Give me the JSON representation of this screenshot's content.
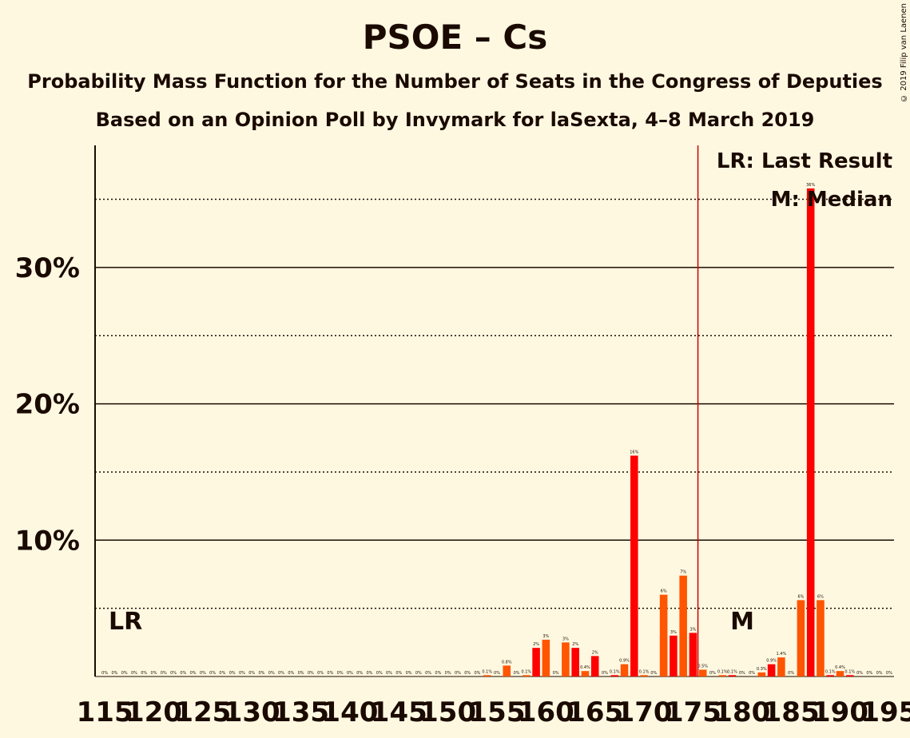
{
  "title": "PSOE – Cs",
  "subtitle": "Probability Mass Function for the Number of Seats in the Congress of Deputies",
  "subtitle2": "Based on an Opinion Poll by Invymark for laSexta, 4–8 March 2019",
  "copyright": "© 2019 Filip van Laenen",
  "legend": {
    "lr": "LR: Last Result",
    "m": "M: Median"
  },
  "markers": {
    "lr_label": "LR",
    "lr_seat": 115,
    "median_label": "M",
    "median_seat": 181,
    "majority_seat": 176
  },
  "colors": {
    "background": "#FFF8E1",
    "bar_primary": "#FF0000",
    "bar_secondary": "#FF5500",
    "majority_line": "#CC0000",
    "text": "#1a0a00"
  },
  "chart_data": {
    "type": "bar",
    "title": "PSOE – Cs",
    "xlabel": "",
    "ylabel": "",
    "x_ticks": [
      "115",
      "120",
      "125",
      "130",
      "135",
      "140",
      "145",
      "150",
      "155",
      "160",
      "165",
      "170",
      "175",
      "180",
      "185",
      "190",
      "195"
    ],
    "y_ticks": [
      "10%",
      "20%",
      "30%"
    ],
    "ylim": [
      0,
      39
    ],
    "grid": "solid lines at 10%, 20%, 30%; dotted lines at 5%, 15%, 25%, 35%",
    "seats": [
      115,
      116,
      117,
      118,
      119,
      120,
      121,
      122,
      123,
      124,
      125,
      126,
      127,
      128,
      129,
      130,
      131,
      132,
      133,
      134,
      135,
      136,
      137,
      138,
      139,
      140,
      141,
      142,
      143,
      144,
      145,
      146,
      147,
      148,
      149,
      150,
      151,
      152,
      153,
      154,
      155,
      156,
      157,
      158,
      159,
      160,
      161,
      162,
      163,
      164,
      165,
      166,
      167,
      168,
      169,
      170,
      171,
      172,
      173,
      174,
      175,
      176,
      177,
      178,
      179,
      180,
      181,
      182,
      183,
      184,
      185,
      186,
      187,
      188,
      189,
      190,
      191,
      192,
      193,
      194,
      195
    ],
    "values": [
      0,
      0,
      0,
      0,
      0,
      0,
      0,
      0,
      0,
      0,
      0,
      0,
      0,
      0,
      0,
      0,
      0,
      0,
      0,
      0,
      0,
      0,
      0,
      0,
      0,
      0,
      0,
      0,
      0,
      0,
      0,
      0,
      0,
      0,
      0,
      0,
      0,
      0,
      0,
      0.1,
      0,
      0.8,
      0,
      0.1,
      2.1,
      2.7,
      0,
      2.5,
      2.1,
      0.4,
      1.5,
      0,
      0.1,
      0.9,
      16.2,
      0.1,
      0,
      6.0,
      3.0,
      7.4,
      3.2,
      0.5,
      0,
      0.1,
      0.1,
      0,
      0,
      0.3,
      0.9,
      1.4,
      0,
      5.6,
      35.8,
      5.6,
      0.1,
      0.4,
      0.1,
      0,
      0,
      0,
      0
    ],
    "value_labels": [
      "0%",
      "0%",
      "0%",
      "0%",
      "0%",
      "0%",
      "0%",
      "0%",
      "0%",
      "0%",
      "0%",
      "0%",
      "0%",
      "0%",
      "0%",
      "0%",
      "0%",
      "0%",
      "0%",
      "0%",
      "0%",
      "0%",
      "0%",
      "0%",
      "0%",
      "0%",
      "0%",
      "0%",
      "0%",
      "0%",
      "0%",
      "0%",
      "0%",
      "0%",
      "0%",
      "0%",
      "0%",
      "0%",
      "0%",
      "0.1%",
      "0%",
      "0.8%",
      "0%",
      "0.1%",
      "2%",
      "3%",
      "0%",
      "3%",
      "2%",
      "0.4%",
      "2%",
      "0%",
      "0.1%",
      "0.9%",
      "16%",
      "0.1%",
      "0%",
      "6%",
      "3%",
      "7%",
      "3%",
      "0.5%",
      "0%",
      "0.1%",
      "0.1%",
      "0%",
      "0%",
      "0.3%",
      "0.9%",
      "1.4%",
      "0%",
      "6%",
      "36%",
      "6%",
      "0.1%",
      "0.4%",
      "0.1%",
      "0%",
      "0%",
      "0%",
      "0%"
    ]
  }
}
